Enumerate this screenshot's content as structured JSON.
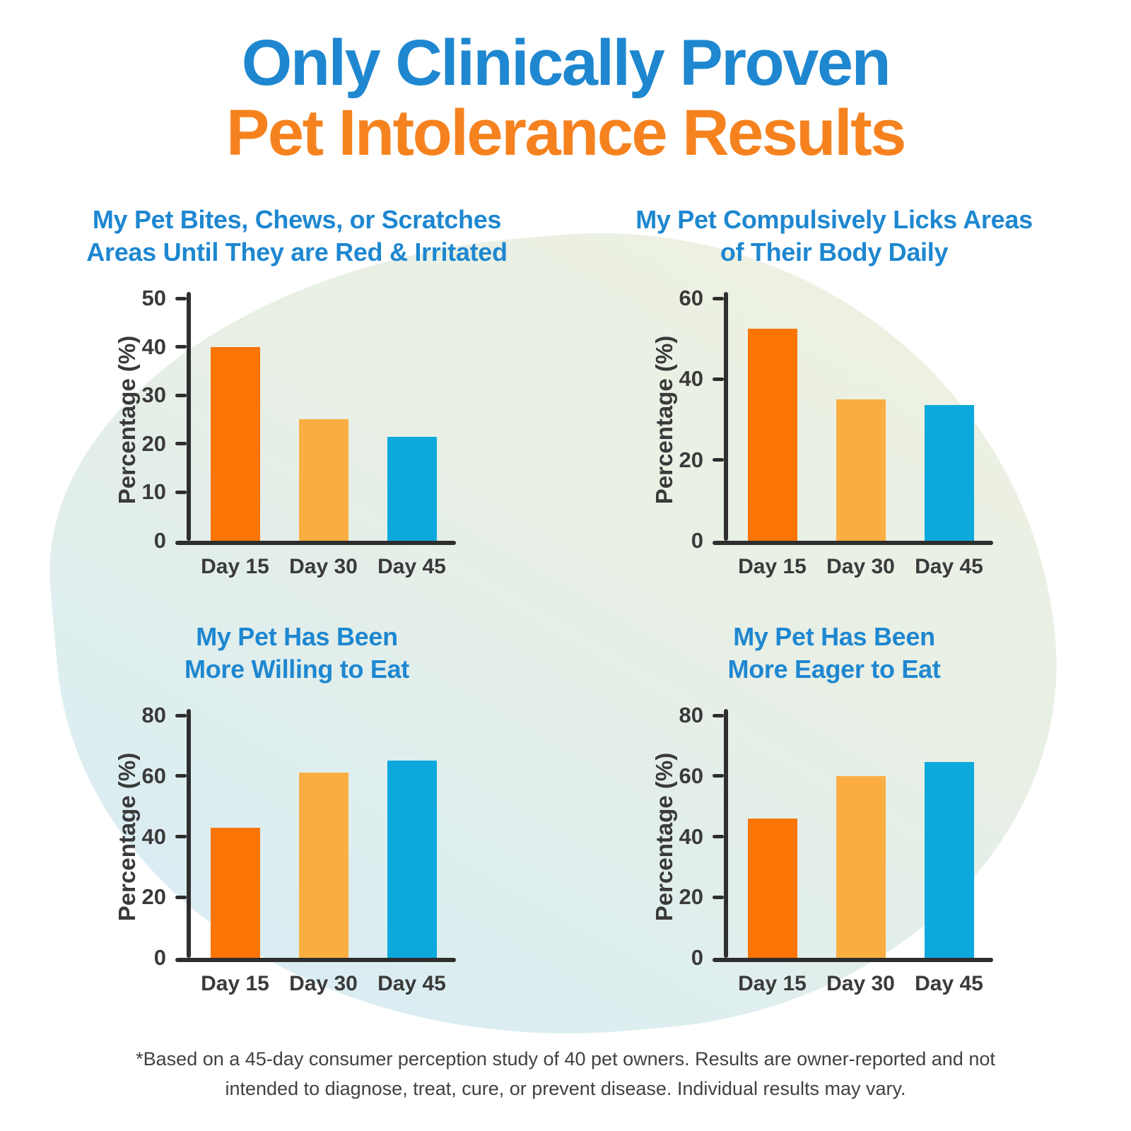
{
  "header": {
    "line1": "Only Clinically Proven",
    "line2": "Pet Intolerance Results"
  },
  "footer": {
    "text": "*Based on a 45-day consumer perception study of 40 pet owners. Results are owner-reported and not intended to diagnose, treat, cure, or prevent disease. Individual results may vary."
  },
  "colors": {
    "heading_blue": "#1E87D0",
    "heading_orange": "#F6821F",
    "chart_title_blue": "#1E87D0",
    "bar_day15": "#FA7505",
    "bar_day30": "#FAAE42",
    "bar_day45": "#0DA9DC",
    "axis": "#2E2E2E",
    "label": "#3A3A3A"
  },
  "chart_data": [
    {
      "type": "bar",
      "title": "My Pet Bites, Chews, or Scratches Areas Until They are Red & Irritated",
      "title_lines": [
        "My Pet Bites, Chews, or Scratches",
        "Areas Until They are Red & Irritated"
      ],
      "categories": [
        "Day 15",
        "Day 30",
        "Day 45"
      ],
      "values": [
        40,
        25,
        21.5
      ],
      "xlabel": "",
      "ylabel": "Percentage (%)",
      "ylim": [
        0,
        50
      ],
      "yticks": [
        0,
        10,
        20,
        30,
        40,
        50
      ],
      "grid": false,
      "legend": "none",
      "bar_colors": [
        "#FA7505",
        "#FAAE42",
        "#0DA9DC"
      ]
    },
    {
      "type": "bar",
      "title": "My Pet Compulsively Licks Areas of Their Body Daily",
      "title_lines": [
        "My Pet Compulsively Licks Areas",
        "of Their Body Daily"
      ],
      "categories": [
        "Day 15",
        "Day 30",
        "Day 45"
      ],
      "values": [
        52.5,
        35,
        33.5
      ],
      "xlabel": "",
      "ylabel": "Percentage (%)",
      "ylim": [
        0,
        60
      ],
      "yticks": [
        0,
        20,
        40,
        60
      ],
      "grid": false,
      "legend": "none",
      "bar_colors": [
        "#FA7505",
        "#FAAE42",
        "#0DA9DC"
      ]
    },
    {
      "type": "bar",
      "title": "My Pet Has Been More Willing to Eat",
      "title_lines": [
        "My Pet Has Been",
        "More Willing to Eat"
      ],
      "categories": [
        "Day 15",
        "Day 30",
        "Day 45"
      ],
      "values": [
        43,
        61,
        65
      ],
      "xlabel": "",
      "ylabel": "Percentage (%)",
      "ylim": [
        0,
        80
      ],
      "yticks": [
        0,
        20,
        40,
        60,
        80
      ],
      "grid": false,
      "legend": "none",
      "bar_colors": [
        "#FA7505",
        "#FAAE42",
        "#0DA9DC"
      ]
    },
    {
      "type": "bar",
      "title": "My Pet Has Been More Eager to Eat",
      "title_lines": [
        "My Pet Has Been",
        "More Eager to Eat"
      ],
      "categories": [
        "Day 15",
        "Day 30",
        "Day 45"
      ],
      "values": [
        46,
        60,
        64.5
      ],
      "xlabel": "",
      "ylabel": "Percentage (%)",
      "ylim": [
        0,
        80
      ],
      "yticks": [
        0,
        20,
        40,
        60,
        80
      ],
      "grid": false,
      "legend": "none",
      "bar_colors": [
        "#FA7505",
        "#FAAE42",
        "#0DA9DC"
      ]
    }
  ]
}
